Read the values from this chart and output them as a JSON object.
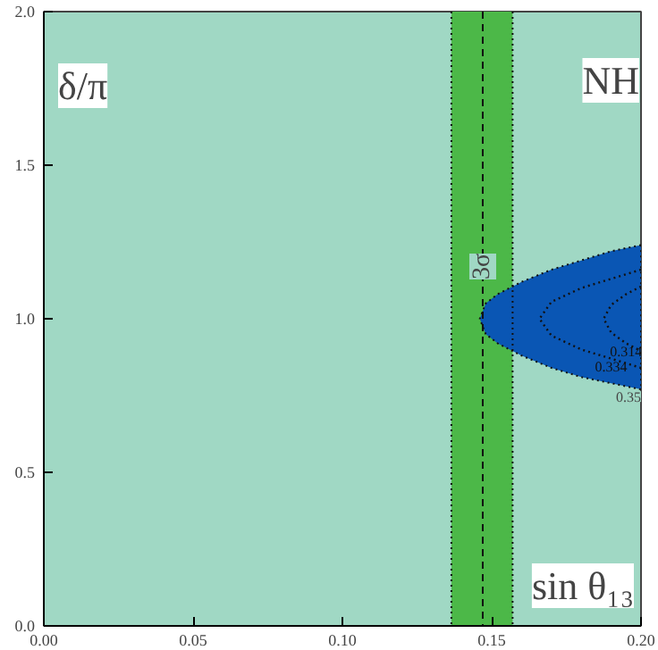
{
  "chart_data": {
    "type": "area",
    "title": "NH",
    "xlabel": "sin θ₁₃",
    "ylabel": "δ/π",
    "series": [
      {
        "name": "0.35",
        "color": "#0a56b4",
        "x": [
          0.2,
          0.19,
          0.18,
          0.17,
          0.16,
          0.152,
          0.148,
          0.146,
          0.148,
          0.152,
          0.16,
          0.17,
          0.18,
          0.19,
          0.2
        ],
        "values": [
          1.24,
          1.22,
          1.19,
          1.16,
          1.12,
          1.08,
          1.05,
          1.0,
          0.95,
          0.92,
          0.88,
          0.84,
          0.81,
          0.79,
          0.77
        ]
      },
      {
        "name": "0.334",
        "type": "line",
        "color": "#111111",
        "line_style": "dotted",
        "x": [
          0.2,
          0.19,
          0.18,
          0.17,
          0.166,
          0.17,
          0.18,
          0.19,
          0.2
        ],
        "values": [
          1.16,
          1.13,
          1.1,
          1.055,
          1.0,
          0.945,
          0.9,
          0.87,
          0.84
        ]
      },
      {
        "name": "0.314",
        "type": "line",
        "color": "#111111",
        "line_style": "dotted",
        "x": [
          0.2,
          0.195,
          0.19,
          0.1875,
          0.19,
          0.195,
          0.2
        ],
        "values": [
          1.105,
          1.08,
          1.045,
          1.0,
          0.955,
          0.92,
          0.895
        ]
      }
    ],
    "bands": [
      {
        "axis": "x",
        "from": 0.1365,
        "to": 0.157,
        "color": "#4cb848"
      }
    ],
    "ref_lines": [
      {
        "axis": "x",
        "value": 0.147,
        "label": "3σ",
        "line_style": "dashed"
      },
      {
        "axis": "x",
        "value": 0.1365,
        "line_style": "dotted"
      },
      {
        "axis": "x",
        "value": 0.157,
        "line_style": "dotted"
      }
    ],
    "xlim": [
      0,
      0.2
    ],
    "ylim": [
      0,
      2
    ],
    "xticks": [
      {
        "value": 0,
        "label": "0.00"
      },
      0.05,
      {
        "value": 0.1,
        "label": "0.10"
      },
      0.15,
      {
        "value": 0.2,
        "label": "0.20"
      }
    ],
    "yticks": [
      {
        "value": 0,
        "label": "0.0"
      },
      0.5,
      {
        "value": 1,
        "label": "1.0"
      },
      1.5,
      {
        "value": 2,
        "label": "2.0"
      }
    ],
    "grid": false
  }
}
